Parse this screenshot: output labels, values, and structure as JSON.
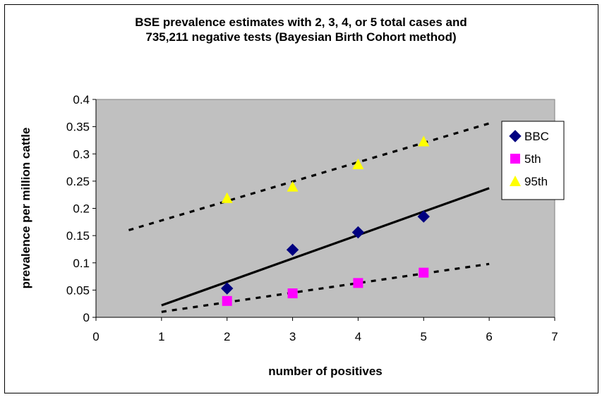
{
  "chart_data": {
    "type": "scatter",
    "title": "BSE prevalence estimates with 2, 3, 4, or 5 total cases and",
    "subtitle": "735,211 negative tests (Bayesian Birth Cohort method)",
    "xlabel": "number of positives",
    "ylabel": "prevalence per million cattle",
    "xlim": [
      0,
      7
    ],
    "ylim": [
      0,
      0.4
    ],
    "x_ticks": [
      "0",
      "1",
      "2",
      "3",
      "4",
      "5",
      "6",
      "7"
    ],
    "y_ticks": [
      "0",
      "0.05",
      "0.1",
      "0.15",
      "0.2",
      "0.25",
      "0.3",
      "0.35",
      "0.4"
    ],
    "plot_background": "#c0c0c0",
    "legend_position": "right",
    "series": [
      {
        "name": "BBC",
        "marker": "diamond",
        "color": "#000080",
        "x": [
          2,
          3,
          4,
          5
        ],
        "y": [
          0.053,
          0.124,
          0.156,
          0.185
        ]
      },
      {
        "name": "5th",
        "marker": "square",
        "color": "#ff00ff",
        "x": [
          2,
          3,
          4,
          5
        ],
        "y": [
          0.03,
          0.044,
          0.063,
          0.082
        ]
      },
      {
        "name": "95th",
        "marker": "triangle",
        "color": "#ffff00",
        "x": [
          2,
          3,
          4,
          5
        ],
        "y": [
          0.219,
          0.24,
          0.281,
          0.323
        ]
      }
    ],
    "trendlines": [
      {
        "series": "BBC",
        "style": "solid",
        "x": [
          1,
          6
        ],
        "y": [
          0.022,
          0.237
        ]
      },
      {
        "series": "5th",
        "style": "dashed",
        "x": [
          1,
          6
        ],
        "y": [
          0.01,
          0.098
        ]
      },
      {
        "series": "95th",
        "style": "dashed",
        "x": [
          0.5,
          6
        ],
        "y": [
          0.16,
          0.356
        ]
      }
    ]
  }
}
